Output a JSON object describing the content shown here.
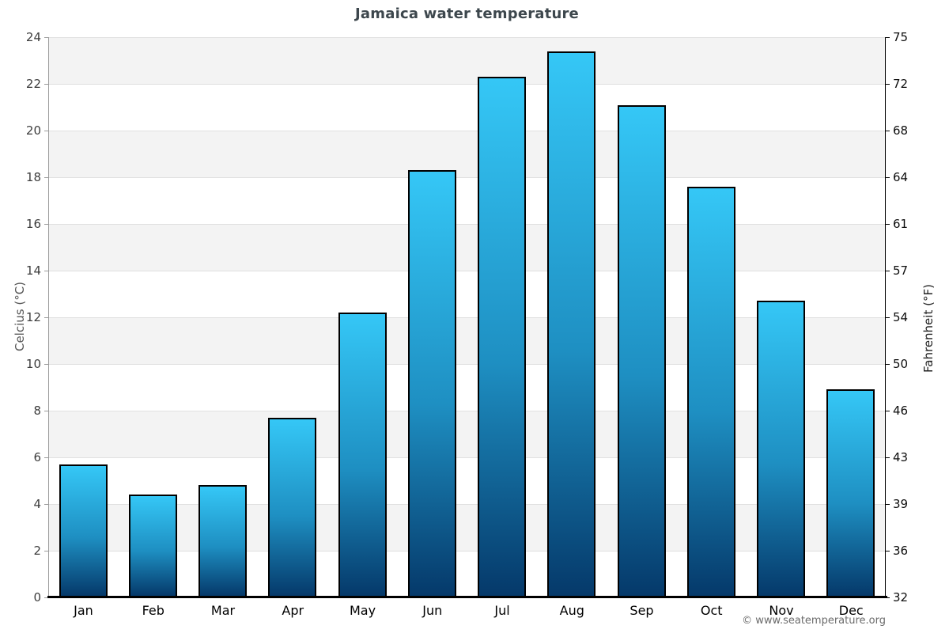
{
  "page": {
    "attribution": "© www.seatemperature.org"
  },
  "chart_data": {
    "type": "bar",
    "title": "Jamaica water temperature",
    "categories": [
      "Jan",
      "Feb",
      "Mar",
      "Apr",
      "May",
      "Jun",
      "Jul",
      "Aug",
      "Sep",
      "Oct",
      "Nov",
      "Dec"
    ],
    "values": [
      5.7,
      4.4,
      4.8,
      7.7,
      12.2,
      18.3,
      22.3,
      23.4,
      21.1,
      17.6,
      12.7,
      8.9
    ],
    "unit": "°C",
    "ylabel_left": "Celcius (°C)",
    "ylabel_right": "Fahrenheit (°F)",
    "ylim_left": [
      0,
      24
    ],
    "yticks_left": [
      0,
      2,
      4,
      6,
      8,
      10,
      12,
      14,
      16,
      18,
      20,
      22,
      24
    ],
    "yticks_right_labels": [
      "32",
      "36",
      "39",
      "43",
      "46",
      "50",
      "54",
      "57",
      "61",
      "64",
      "68",
      "72",
      "75"
    ],
    "grid": "horizontal",
    "background_bands": "alternating 2-degree gray/white bands",
    "legend": "none",
    "xlabel": ""
  },
  "colors": {
    "bar_gradient_top": "#35c7f6",
    "bar_gradient_bottom": "#05396a",
    "bar_border": "#000000",
    "band_gray": "#f3f3f3",
    "gridline": "#e0e0e0",
    "axis_left_line": "#9b9b9b",
    "axis_right_line": "#000000",
    "axis_bottom_line": "#000000",
    "title_text": "#3d474d",
    "left_tick_text": "#3d3d3d",
    "right_tick_text": "#0d0d0d",
    "month_text": "#000000",
    "attribution_text": "#6b6b6b"
  }
}
